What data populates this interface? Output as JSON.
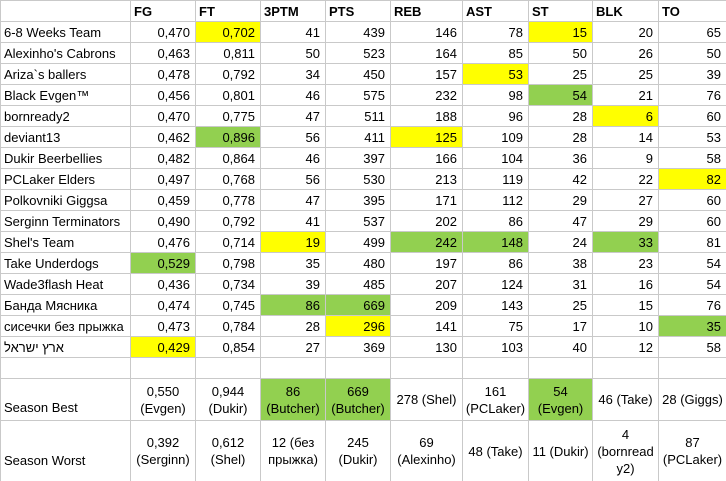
{
  "colors": {
    "highlight_yellow": "#ffff00",
    "highlight_green": "#92d050",
    "gridline": "#c9c9c9"
  },
  "table": {
    "columns": [
      "FG",
      "FT",
      "3PTM",
      "PTS",
      "REB",
      "AST",
      "ST",
      "BLK",
      "TO"
    ],
    "rows": [
      {
        "name": "6-8 Weeks Team",
        "values": [
          "0,470",
          "0,702",
          "41",
          "439",
          "146",
          "78",
          "15",
          "20",
          "65"
        ],
        "highlights": {
          "1": "yellow",
          "6": "yellow"
        }
      },
      {
        "name": "Alexinho's Cabrons",
        "values": [
          "0,463",
          "0,811",
          "50",
          "523",
          "164",
          "85",
          "50",
          "26",
          "50"
        ],
        "highlights": {}
      },
      {
        "name": "Ariza`s ballers",
        "values": [
          "0,478",
          "0,792",
          "34",
          "450",
          "157",
          "53",
          "25",
          "25",
          "39"
        ],
        "highlights": {
          "5": "yellow"
        }
      },
      {
        "name": "Black Evgen™",
        "values": [
          "0,456",
          "0,801",
          "46",
          "575",
          "232",
          "98",
          "54",
          "21",
          "76"
        ],
        "highlights": {
          "6": "green"
        }
      },
      {
        "name": "bornready2",
        "values": [
          "0,470",
          "0,775",
          "47",
          "511",
          "188",
          "96",
          "28",
          "6",
          "60"
        ],
        "highlights": {
          "7": "yellow"
        }
      },
      {
        "name": "deviant13",
        "values": [
          "0,462",
          "0,896",
          "56",
          "411",
          "125",
          "109",
          "28",
          "14",
          "53"
        ],
        "highlights": {
          "1": "green",
          "4": "yellow"
        }
      },
      {
        "name": "Dukir Beerbellies",
        "values": [
          "0,482",
          "0,864",
          "46",
          "397",
          "166",
          "104",
          "36",
          "9",
          "58"
        ],
        "highlights": {}
      },
      {
        "name": "PCLaker Elders",
        "values": [
          "0,497",
          "0,768",
          "56",
          "530",
          "213",
          "119",
          "42",
          "22",
          "82"
        ],
        "highlights": {
          "8": "yellow"
        }
      },
      {
        "name": "Polkovniki Giggsa",
        "values": [
          "0,459",
          "0,778",
          "47",
          "395",
          "171",
          "112",
          "29",
          "27",
          "60"
        ],
        "highlights": {}
      },
      {
        "name": "Serginn Terminators",
        "values": [
          "0,490",
          "0,792",
          "41",
          "537",
          "202",
          "86",
          "47",
          "29",
          "60"
        ],
        "highlights": {}
      },
      {
        "name": "Shel's Team",
        "values": [
          "0,476",
          "0,714",
          "19",
          "499",
          "242",
          "148",
          "24",
          "33",
          "81"
        ],
        "highlights": {
          "2": "yellow",
          "4": "green",
          "5": "green",
          "7": "green"
        }
      },
      {
        "name": "Take Underdogs",
        "values": [
          "0,529",
          "0,798",
          "35",
          "480",
          "197",
          "86",
          "38",
          "23",
          "54"
        ],
        "highlights": {
          "0": "green"
        }
      },
      {
        "name": "Wade3flash Heat",
        "values": [
          "0,436",
          "0,734",
          "39",
          "485",
          "207",
          "124",
          "31",
          "16",
          "54"
        ],
        "highlights": {}
      },
      {
        "name": "Банда Мясника",
        "values": [
          "0,474",
          "0,745",
          "86",
          "669",
          "209",
          "143",
          "25",
          "15",
          "76"
        ],
        "highlights": {
          "2": "green",
          "3": "green"
        }
      },
      {
        "name": "сисечки без прыжка",
        "values": [
          "0,473",
          "0,784",
          "28",
          "296",
          "141",
          "75",
          "17",
          "10",
          "35"
        ],
        "highlights": {
          "3": "yellow",
          "8": "green"
        }
      },
      {
        "name": "ארץ ישראל",
        "values": [
          "0,429",
          "0,854",
          "27",
          "369",
          "130",
          "103",
          "40",
          "12",
          "58"
        ],
        "highlights": {
          "0": "yellow"
        }
      }
    ]
  },
  "season_best": {
    "label": "Season Best",
    "cells": [
      "0,550 (Evgen)",
      "0,944 (Dukir)",
      "86 (Butcher)",
      "669 (Butcher)",
      "278 (Shel)",
      "161 (PCLaker)",
      "54 (Evgen)",
      "46 (Take)",
      "28 (Giggs)"
    ],
    "highlights": {
      "2": "green",
      "3": "green",
      "6": "green"
    }
  },
  "season_worst": {
    "label": "Season Worst",
    "cells": [
      "0,392 (Serginn)",
      "0,612 (Shel)",
      "12 (без прыжка)",
      "245 (Dukir)",
      "69 (Alexinho)",
      "48 (Take)",
      "11 (Dukir)",
      "4 (bornready2)",
      "87 (PCLaker)"
    ],
    "highlights": {}
  }
}
